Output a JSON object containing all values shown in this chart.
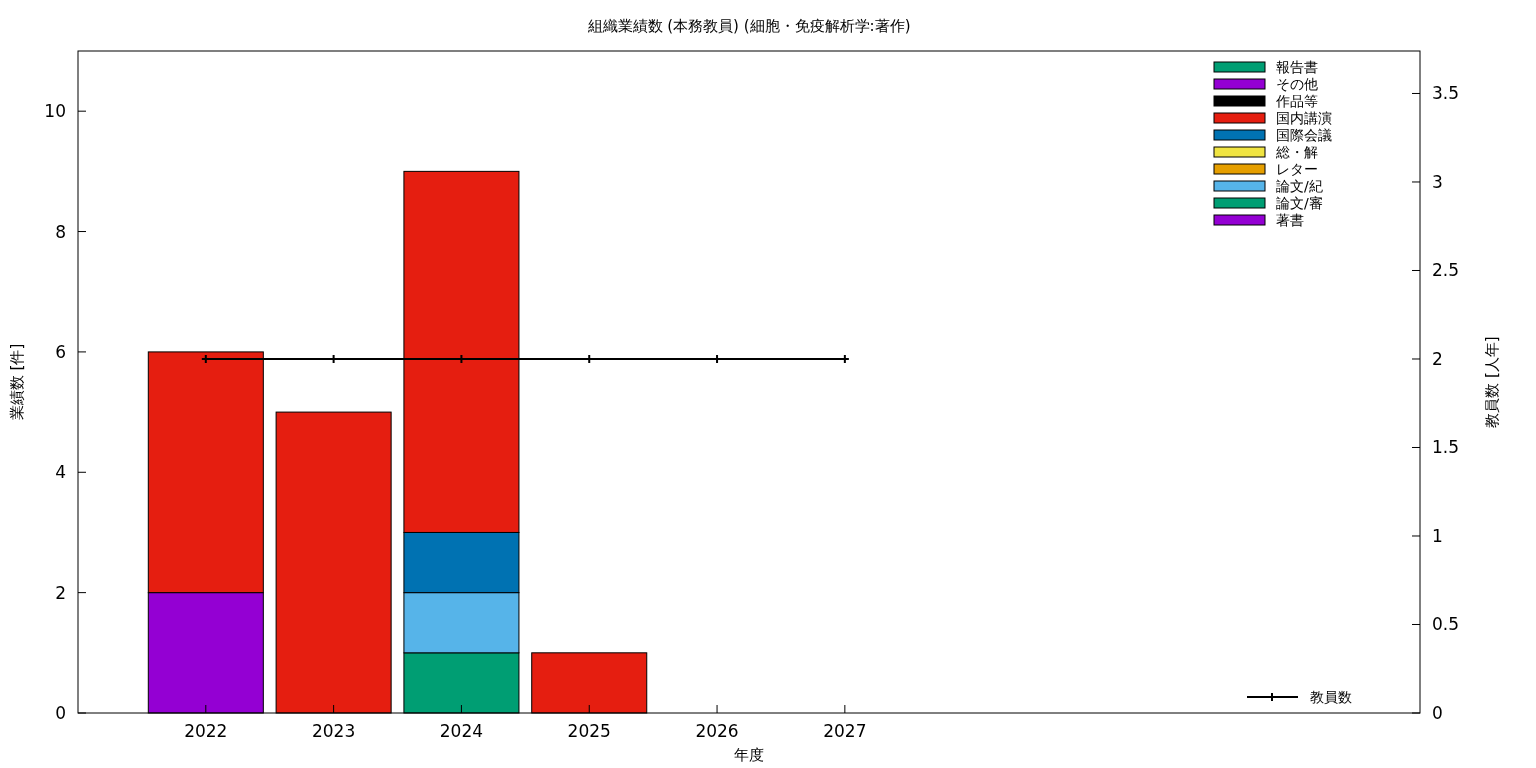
{
  "chart_data": {
    "type": "bar",
    "stacked": true,
    "title": "組織業績数 (本務教員) (細胞・免疫解析学:著作)",
    "xlabel": "年度",
    "ylabel": "業績数 [件]",
    "y2label": "教員数 [人年]",
    "x": [
      2022,
      2023,
      2024,
      2025,
      2026,
      2027
    ],
    "xlim": [
      2021,
      2031.5
    ],
    "xticks": [
      2022,
      2023,
      2024,
      2025,
      2026,
      2027
    ],
    "ylim": [
      0,
      11
    ],
    "yticks": [
      0,
      2,
      4,
      6,
      8,
      10
    ],
    "y2lim": [
      0,
      3.74
    ],
    "y2ticks": [
      0,
      0.5,
      1,
      1.5,
      2,
      2.5,
      3,
      3.5
    ],
    "legend": "top right",
    "grid": false,
    "series": [
      {
        "name": "著書",
        "color": "#9400d3",
        "values": [
          2,
          0,
          0,
          0,
          0,
          0
        ]
      },
      {
        "name": "論文/審",
        "color": "#009e73",
        "values": [
          0,
          0,
          1,
          0,
          0,
          0
        ]
      },
      {
        "name": "論文/紀",
        "color": "#56b4e9",
        "values": [
          0,
          0,
          1,
          0,
          0,
          0
        ]
      },
      {
        "name": "レター",
        "color": "#e69f00",
        "values": [
          0,
          0,
          0,
          0,
          0,
          0
        ]
      },
      {
        "name": "総・解",
        "color": "#f0e442",
        "values": [
          0,
          0,
          0,
          0,
          0,
          0
        ]
      },
      {
        "name": "国際会議",
        "color": "#0072b2",
        "values": [
          0,
          0,
          1,
          0,
          0,
          0
        ]
      },
      {
        "name": "国内講演",
        "color": "#e51e10",
        "values": [
          4,
          5,
          6,
          1,
          0,
          0
        ]
      },
      {
        "name": "作品等",
        "color": "#000000",
        "values": [
          0,
          0,
          0,
          0,
          0,
          0
        ]
      },
      {
        "name": "その他",
        "color": "#9400d3",
        "values": [
          0,
          0,
          0,
          0,
          0,
          0
        ]
      },
      {
        "name": "報告書",
        "color": "#009e73",
        "values": [
          0,
          0,
          0,
          0,
          0,
          0
        ]
      },
      {
        "name": "教員数",
        "type": "line",
        "axis": "y2",
        "color": "#000000",
        "marker": "cross",
        "line_style": "solid",
        "values": [
          2,
          2,
          2,
          2,
          2,
          2
        ]
      }
    ]
  }
}
